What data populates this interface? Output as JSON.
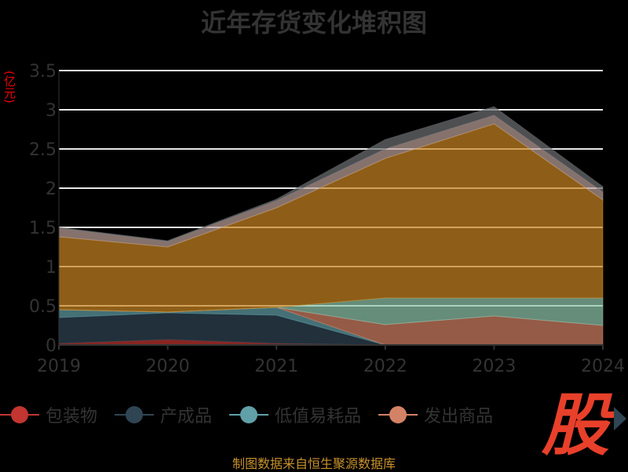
{
  "chart_data": {
    "type": "area",
    "stacked": true,
    "title": "近年存货变化堆积图",
    "ylabel": "(亿元)",
    "xlabel": "",
    "x": [
      "2019",
      "2020",
      "2021",
      "2022",
      "2023",
      "2024"
    ],
    "ylim": [
      0,
      3.5
    ],
    "yticks": [
      "0",
      "0.5",
      "1",
      "1.5",
      "2",
      "2.5",
      "3",
      "3.5"
    ],
    "grid": true,
    "legend_position": "bottom",
    "series": [
      {
        "name": "包装物",
        "color": "#c23531",
        "values": [
          0.02,
          0.07,
          0.02,
          0,
          0,
          0
        ]
      },
      {
        "name": "产成品",
        "color": "#2f4554",
        "values": [
          0.33,
          0.34,
          0.36,
          0,
          0,
          0
        ]
      },
      {
        "name": "低值易耗品",
        "color": "#61a0a8",
        "values": [
          0.1,
          0.01,
          0.1,
          0,
          0,
          0
        ]
      },
      {
        "name": "发出商品",
        "color": "#d48265",
        "values": [
          0,
          0,
          0,
          0.26,
          0.37,
          0.25
        ]
      },
      {
        "name": "",
        "color": "#91c7ae",
        "values": [
          0,
          0,
          0,
          0.34,
          0.23,
          0.35
        ]
      },
      {
        "name": "",
        "color": "#ca8622",
        "values": [
          0.93,
          0.83,
          1.27,
          1.78,
          2.22,
          1.25
        ]
      },
      {
        "name": "",
        "color": "#bda29a",
        "values": [
          0.11,
          0.07,
          0.09,
          0.12,
          0.11,
          0.1
        ]
      },
      {
        "name": "",
        "color": "#6e7074",
        "values": [
          0.01,
          0.01,
          0.02,
          0.12,
          0.11,
          0.07
        ]
      }
    ]
  },
  "legend_visible": [
    "包装物",
    "产成品",
    "低值易耗品",
    "发出商品"
  ],
  "footer": "制图数据来自恒生聚源数据库",
  "watermark": "股"
}
